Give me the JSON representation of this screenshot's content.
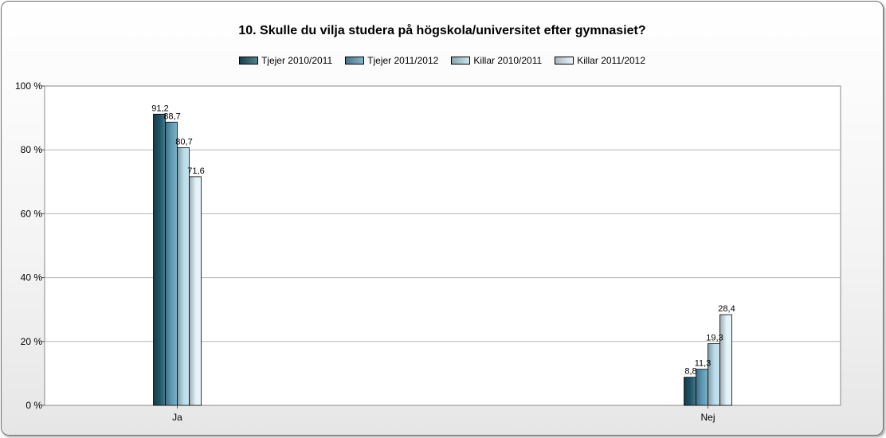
{
  "chart_data": {
    "type": "bar",
    "title": "10. Skulle du vilja studera på högskola/universitet efter gymnasiet?",
    "categories": [
      "Ja",
      "Nej"
    ],
    "series": [
      {
        "name": "Tjejer 2010/2011",
        "values": [
          91.2,
          8.8
        ],
        "labels": [
          "91,2",
          "8,8"
        ],
        "color": "#1f5568"
      },
      {
        "name": "Tjejer 2011/2012",
        "values": [
          88.7,
          11.3
        ],
        "labels": [
          "88,7",
          "11,3"
        ],
        "color": "#5e9cb7"
      },
      {
        "name": "Killar 2010/2011",
        "values": [
          80.7,
          19.3
        ],
        "labels": [
          "80,7",
          "19,3"
        ],
        "color": "#b9dcea"
      },
      {
        "name": "Killar 2011/2012",
        "values": [
          71.6,
          28.4
        ],
        "labels": [
          "71,6",
          "28,4"
        ],
        "color": "#e2f2f8"
      }
    ],
    "yticks": [
      {
        "value": 0,
        "label": "0 %"
      },
      {
        "value": 20,
        "label": "20 %"
      },
      {
        "value": 40,
        "label": "40 %"
      },
      {
        "value": 60,
        "label": "60 %"
      },
      {
        "value": 80,
        "label": "80 %"
      },
      {
        "value": 100,
        "label": "100 %"
      }
    ],
    "ylim": [
      0,
      100
    ],
    "grid": true,
    "legend_position": "top-center",
    "xlabel": "",
    "ylabel": ""
  }
}
